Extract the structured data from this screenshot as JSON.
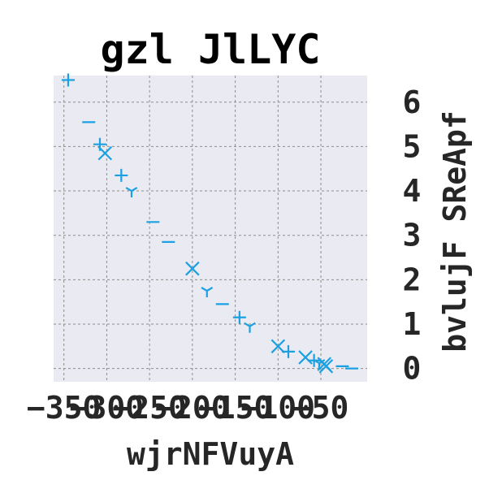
{
  "chart_data": {
    "type": "scatter",
    "title": "gzl JlLYC",
    "xlabel": "wjrNFVuyA",
    "ylabel": "bvlujF SReApf",
    "xlim": [
      -362,
      4
    ],
    "ylim": [
      -0.3,
      6.6
    ],
    "x_ticks": [
      -350,
      -300,
      -250,
      -200,
      -150,
      -100,
      -50
    ],
    "x_tick_labels": [
      "−350",
      "−300",
      "−250",
      "−200",
      "−150",
      "−100",
      "−50"
    ],
    "y_ticks": [
      0,
      1,
      2,
      3,
      4,
      5,
      6
    ],
    "y_tick_labels": [
      "0",
      "1",
      "2",
      "3",
      "4",
      "5",
      "6"
    ],
    "y_axis_side": "right",
    "grid": true,
    "marker_color": "#1ba1e2",
    "background_color": "#eaeaf2",
    "points": [
      {
        "x": -345,
        "y": 6.5,
        "marker": "plus"
      },
      {
        "x": -321,
        "y": 5.55,
        "marker": "hline"
      },
      {
        "x": -308,
        "y": 5.05,
        "marker": "plus"
      },
      {
        "x": -302,
        "y": 4.85,
        "marker": "x"
      },
      {
        "x": -283,
        "y": 4.35,
        "marker": "plus"
      },
      {
        "x": -271,
        "y": 4.0,
        "marker": "tri"
      },
      {
        "x": -246,
        "y": 3.3,
        "marker": "hline"
      },
      {
        "x": -228,
        "y": 2.85,
        "marker": "hline"
      },
      {
        "x": -200,
        "y": 2.25,
        "marker": "x"
      },
      {
        "x": -183,
        "y": 1.75,
        "marker": "tri"
      },
      {
        "x": -165,
        "y": 1.45,
        "marker": "hline"
      },
      {
        "x": -145,
        "y": 1.15,
        "marker": "plus"
      },
      {
        "x": -133,
        "y": 0.95,
        "marker": "tri"
      },
      {
        "x": -100,
        "y": 0.5,
        "marker": "x"
      },
      {
        "x": -88,
        "y": 0.38,
        "marker": "plus"
      },
      {
        "x": -68,
        "y": 0.25,
        "marker": "x"
      },
      {
        "x": -58,
        "y": 0.18,
        "marker": "plus"
      },
      {
        "x": -52,
        "y": 0.12,
        "marker": "tri"
      },
      {
        "x": -46,
        "y": 0.1,
        "marker": "x"
      },
      {
        "x": -44,
        "y": 0.05,
        "marker": "x"
      },
      {
        "x": -25,
        "y": 0.05,
        "marker": "hline"
      },
      {
        "x": -14,
        "y": 0.0,
        "marker": "hline"
      }
    ]
  }
}
